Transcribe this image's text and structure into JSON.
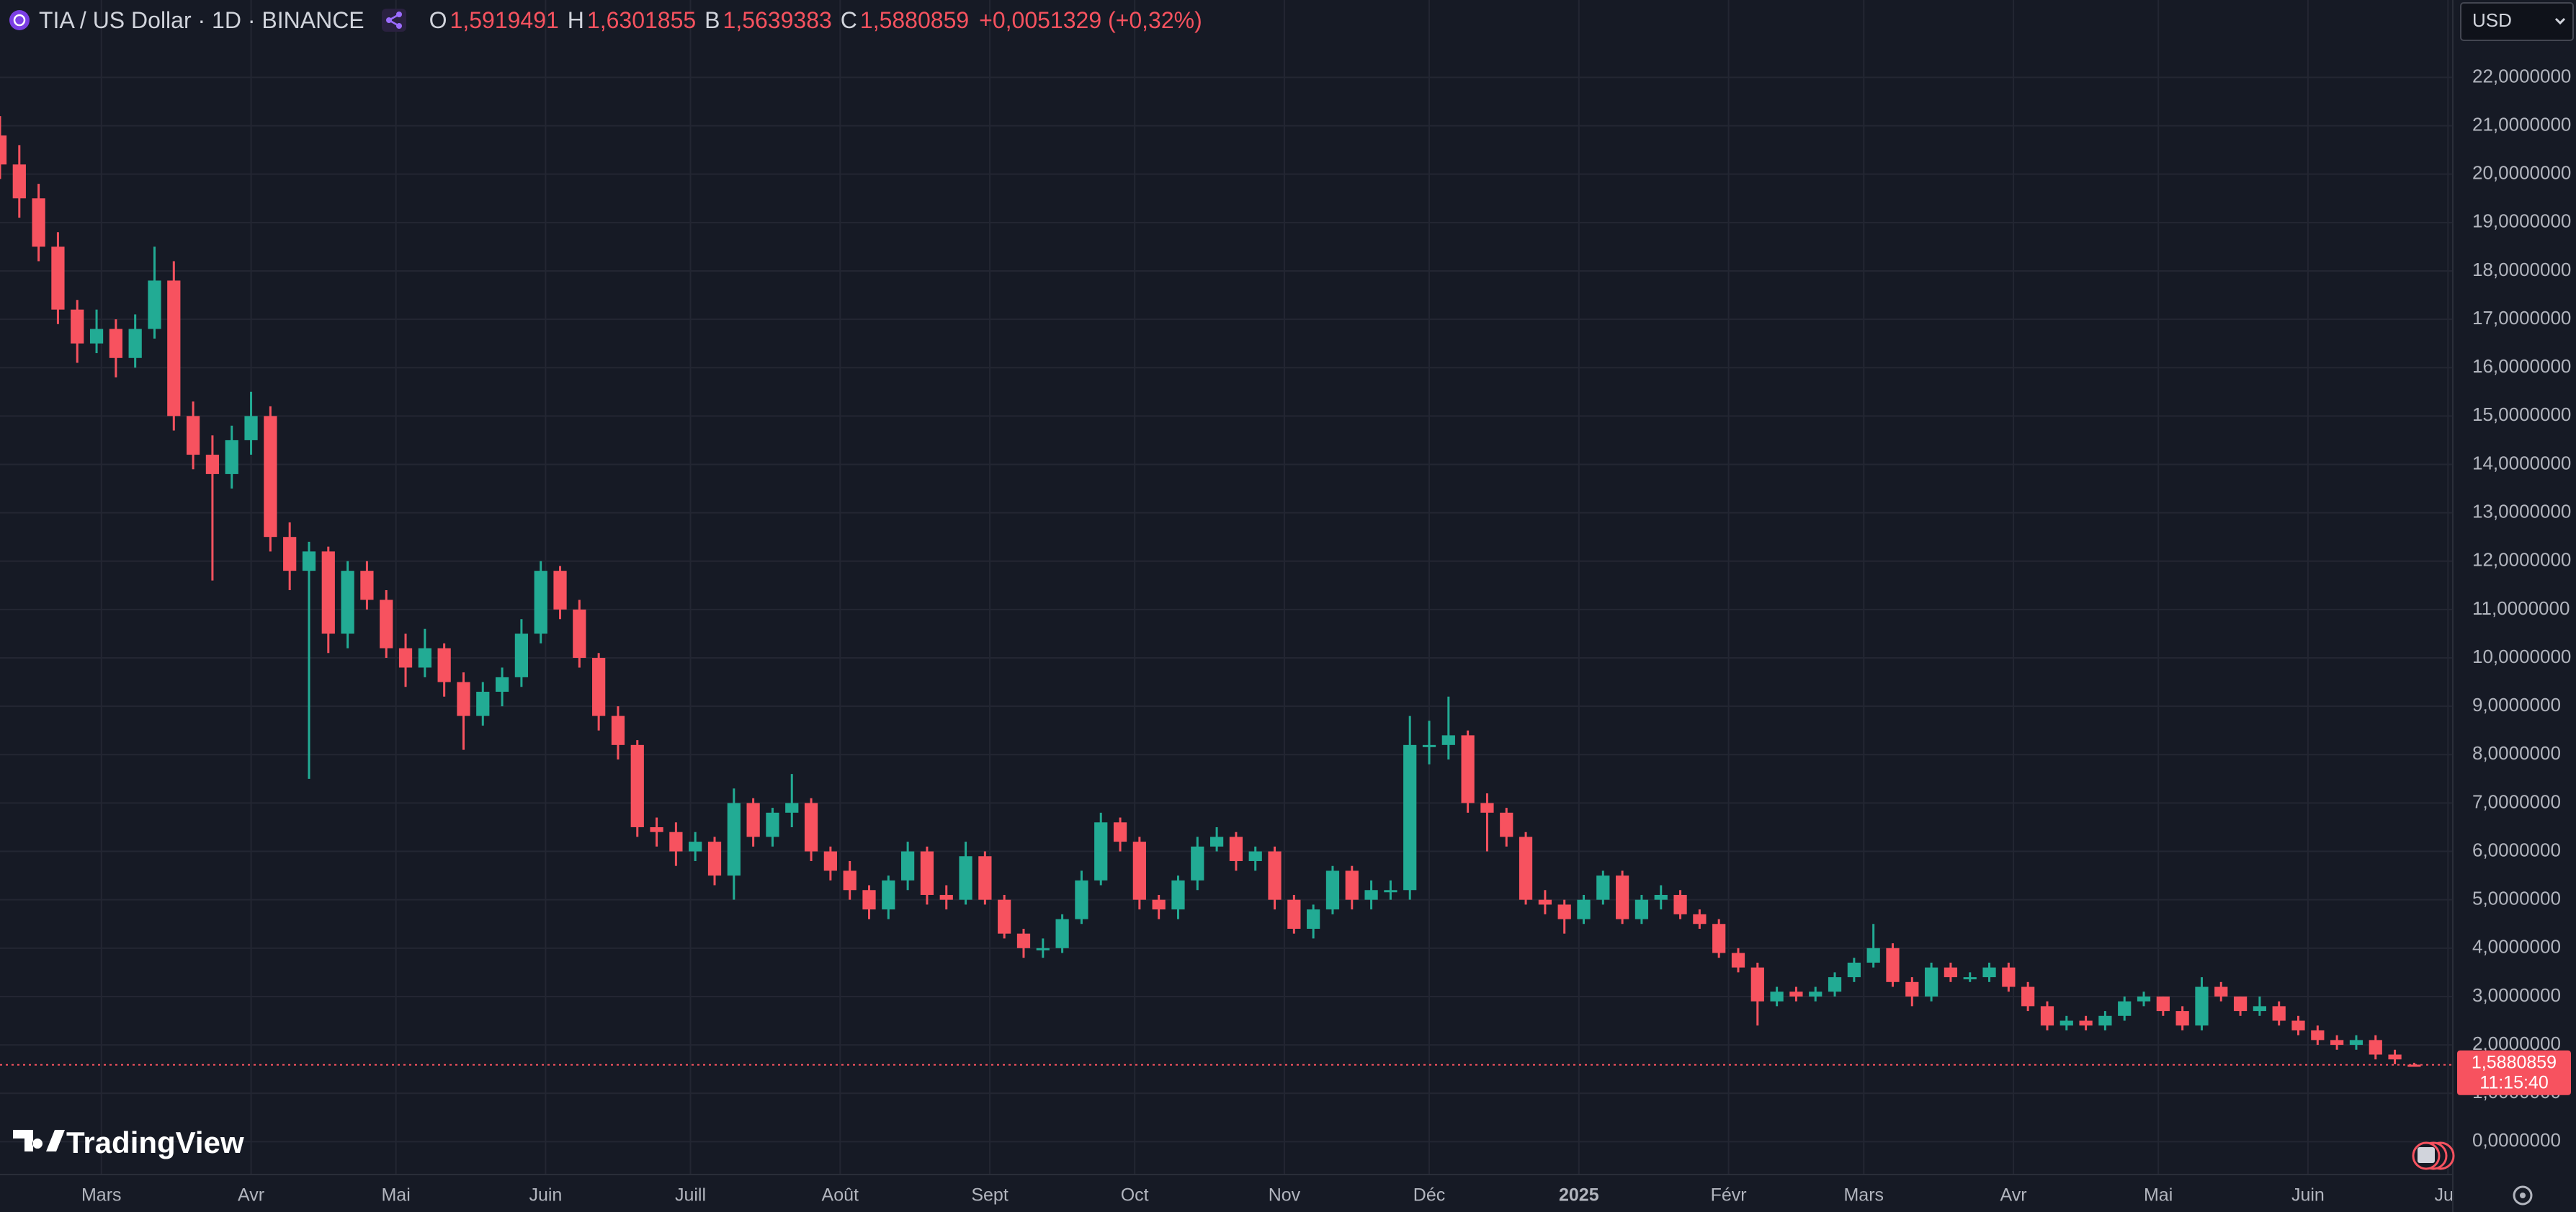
{
  "header": {
    "symbol": "TIA / US Dollar · 1D · BINANCE",
    "ohlc": [
      {
        "key": "O",
        "value": "1,5919491"
      },
      {
        "key": "H",
        "value": "1,6301855"
      },
      {
        "key": "B",
        "value": "1,5639383"
      },
      {
        "key": "C",
        "value": "1,5880859"
      }
    ],
    "change": "+0,0051329 (+0,32%)"
  },
  "currency": "USD",
  "brand": "TradingView",
  "chart_data": {
    "type": "candlestick",
    "up_color": "#22ab94",
    "down_color": "#f7525f",
    "grid": true,
    "open": [
      20.8,
      20.2,
      19.5,
      18.5,
      17.2,
      16.5,
      16.8,
      16.2,
      16.8,
      17.8,
      15.0,
      14.2,
      13.8,
      14.5,
      15.0,
      12.5,
      11.8,
      12.2,
      10.5,
      11.8,
      11.2,
      10.2,
      9.8,
      10.2,
      9.5,
      8.8,
      9.3,
      9.6,
      10.5,
      11.8,
      11.0,
      10.0,
      8.8,
      8.2,
      6.5,
      6.4,
      6.0,
      6.2,
      5.5,
      7.0,
      6.3,
      6.8,
      7.0,
      6.0,
      5.6,
      5.2,
      4.8,
      5.4,
      6.0,
      5.1,
      5.0,
      5.9,
      5.0,
      4.3,
      4.0,
      4.0,
      4.6,
      5.4,
      6.6,
      6.2,
      5.0,
      4.8,
      5.4,
      6.1,
      6.3,
      5.8,
      6.0,
      5.0,
      4.4,
      4.8,
      5.6,
      5.0,
      5.2,
      5.2,
      8.2,
      8.2,
      8.4,
      7.0,
      6.8,
      6.3,
      5.0,
      4.9,
      4.6,
      5.0,
      5.5,
      4.6,
      5.0,
      5.1,
      4.7,
      4.5,
      3.9,
      3.6,
      2.9,
      3.1,
      3.0,
      3.1,
      3.4,
      3.7,
      4.0,
      3.3,
      3.0,
      3.6,
      3.4,
      3.4,
      3.6,
      3.2,
      2.8,
      2.4,
      2.5,
      2.4,
      2.6,
      2.9,
      3.0,
      2.7,
      2.4,
      3.2,
      3.0,
      2.7,
      2.8,
      2.5,
      2.3,
      2.1,
      2.0,
      2.1,
      1.8,
      1.5919491
    ],
    "high": [
      21.2,
      20.6,
      19.8,
      18.8,
      17.4,
      17.2,
      17.0,
      17.1,
      18.5,
      18.2,
      15.3,
      14.6,
      14.8,
      15.5,
      15.2,
      12.8,
      12.4,
      12.3,
      12.0,
      12.0,
      11.4,
      10.5,
      10.6,
      10.3,
      9.7,
      9.5,
      9.8,
      10.8,
      12.0,
      11.9,
      11.2,
      10.1,
      9.0,
      8.3,
      6.7,
      6.6,
      6.4,
      6.3,
      7.3,
      7.1,
      6.9,
      7.6,
      7.1,
      6.1,
      5.8,
      5.3,
      5.5,
      6.2,
      6.1,
      5.3,
      6.2,
      6.0,
      5.1,
      4.4,
      4.2,
      4.7,
      5.6,
      6.8,
      6.7,
      6.3,
      5.1,
      5.5,
      6.3,
      6.5,
      6.4,
      6.1,
      6.1,
      5.1,
      4.9,
      5.7,
      5.7,
      5.4,
      5.4,
      8.8,
      8.7,
      9.2,
      8.5,
      7.2,
      6.9,
      6.4,
      5.2,
      5.0,
      5.1,
      5.6,
      5.6,
      5.1,
      5.3,
      5.2,
      4.8,
      4.6,
      4.0,
      3.7,
      3.2,
      3.2,
      3.2,
      3.5,
      3.8,
      4.5,
      4.1,
      3.4,
      3.7,
      3.7,
      3.5,
      3.7,
      3.7,
      3.3,
      2.9,
      2.6,
      2.6,
      2.7,
      3.0,
      3.1,
      3.0,
      2.8,
      3.4,
      3.3,
      3.0,
      3.0,
      2.9,
      2.6,
      2.4,
      2.2,
      2.2,
      2.2,
      1.9,
      1.6301855
    ],
    "low": [
      19.9,
      19.1,
      18.2,
      16.9,
      16.1,
      16.3,
      15.8,
      16.0,
      16.6,
      14.7,
      13.9,
      11.6,
      13.5,
      14.2,
      12.2,
      11.4,
      7.5,
      10.1,
      10.2,
      11.0,
      10.0,
      9.4,
      9.6,
      9.2,
      8.1,
      8.6,
      9.0,
      9.4,
      10.3,
      10.8,
      9.8,
      8.5,
      7.9,
      6.3,
      6.1,
      5.7,
      5.8,
      5.3,
      5.0,
      6.1,
      6.1,
      6.5,
      5.8,
      5.4,
      5.0,
      4.6,
      4.6,
      5.2,
      4.9,
      4.8,
      4.9,
      4.9,
      4.2,
      3.8,
      3.8,
      3.9,
      4.5,
      5.3,
      6.0,
      4.8,
      4.6,
      4.6,
      5.2,
      6.0,
      5.6,
      5.6,
      4.8,
      4.3,
      4.2,
      4.7,
      4.8,
      4.8,
      5.0,
      5.0,
      7.8,
      7.9,
      6.8,
      6.0,
      6.1,
      4.9,
      4.7,
      4.3,
      4.5,
      4.9,
      4.5,
      4.5,
      4.8,
      4.6,
      4.4,
      3.8,
      3.5,
      2.4,
      2.8,
      2.9,
      2.9,
      3.0,
      3.3,
      3.6,
      3.2,
      2.8,
      2.9,
      3.3,
      3.3,
      3.3,
      3.1,
      2.7,
      2.3,
      2.3,
      2.3,
      2.3,
      2.5,
      2.8,
      2.6,
      2.3,
      2.3,
      2.9,
      2.6,
      2.6,
      2.4,
      2.2,
      2.0,
      1.9,
      1.9,
      1.7,
      1.6,
      1.5639383
    ],
    "close": [
      20.2,
      19.5,
      18.5,
      17.2,
      16.5,
      16.8,
      16.2,
      16.8,
      17.8,
      15.0,
      14.2,
      13.8,
      14.5,
      15.0,
      12.5,
      11.8,
      12.2,
      10.5,
      11.8,
      11.2,
      10.2,
      9.8,
      10.2,
      9.5,
      8.8,
      9.3,
      9.6,
      10.5,
      11.8,
      11.0,
      10.0,
      8.8,
      8.2,
      6.5,
      6.4,
      6.0,
      6.2,
      5.5,
      7.0,
      6.3,
      6.8,
      7.0,
      6.0,
      5.6,
      5.2,
      4.8,
      5.4,
      6.0,
      5.1,
      5.0,
      5.9,
      5.0,
      4.3,
      4.0,
      4.0,
      4.6,
      5.4,
      6.6,
      6.2,
      5.0,
      4.8,
      5.4,
      6.1,
      6.3,
      5.8,
      6.0,
      5.0,
      4.4,
      4.8,
      5.6,
      5.0,
      5.2,
      5.2,
      8.2,
      8.2,
      8.4,
      7.0,
      6.8,
      6.3,
      5.0,
      4.9,
      4.6,
      5.0,
      5.5,
      4.6,
      5.0,
      5.1,
      4.7,
      4.5,
      3.9,
      3.6,
      2.9,
      3.1,
      3.0,
      3.1,
      3.4,
      3.7,
      4.0,
      3.3,
      3.0,
      3.6,
      3.4,
      3.4,
      3.6,
      3.2,
      2.8,
      2.4,
      2.5,
      2.4,
      2.6,
      2.9,
      3.0,
      2.7,
      2.4,
      3.2,
      3.0,
      2.7,
      2.8,
      2.5,
      2.3,
      2.1,
      2.0,
      2.1,
      1.8,
      1.7,
      1.5880859
    ],
    "xlim": [
      0,
      127
    ],
    "xticks": [
      {
        "value": 5.25,
        "label": "Mars"
      },
      {
        "value": 13,
        "label": "Avr"
      },
      {
        "value": 20.5,
        "label": "Mai"
      },
      {
        "value": 28.25,
        "label": "Juin"
      },
      {
        "value": 35.75,
        "label": "Juill"
      },
      {
        "value": 43.5,
        "label": "Août"
      },
      {
        "value": 51.25,
        "label": "Sept"
      },
      {
        "value": 58.75,
        "label": "Oct"
      },
      {
        "value": 66.5,
        "label": "Nov"
      },
      {
        "value": 74,
        "label": "Déc"
      },
      {
        "value": 81.75,
        "label": "2025",
        "bold": true
      },
      {
        "value": 89.5,
        "label": "Févr"
      },
      {
        "value": 96.5,
        "label": "Mars"
      },
      {
        "value": 104.25,
        "label": "Avr"
      },
      {
        "value": 111.75,
        "label": "Mai"
      },
      {
        "value": 119.5,
        "label": "Juin"
      },
      {
        "value": 126.75,
        "label": "Juil"
      }
    ],
    "ylim": [
      -0.68,
      23.6
    ],
    "yticks": [
      {
        "value": 0,
        "label": "0,0000000"
      },
      {
        "value": 1,
        "label": "1,0000000"
      },
      {
        "value": 2,
        "label": "2,0000000"
      },
      {
        "value": 3,
        "label": "3,0000000"
      },
      {
        "value": 4,
        "label": "4,0000000"
      },
      {
        "value": 5,
        "label": "5,0000000"
      },
      {
        "value": 6,
        "label": "6,0000000"
      },
      {
        "value": 7,
        "label": "7,0000000"
      },
      {
        "value": 8,
        "label": "8,0000000"
      },
      {
        "value": 9,
        "label": "9,0000000"
      },
      {
        "value": 10,
        "label": "10,0000000"
      },
      {
        "value": 11,
        "label": "11,0000000"
      },
      {
        "value": 12,
        "label": "12,0000000"
      },
      {
        "value": 13,
        "label": "13,0000000"
      },
      {
        "value": 14,
        "label": "14,0000000"
      },
      {
        "value": 15,
        "label": "15,0000000"
      },
      {
        "value": 16,
        "label": "16,0000000"
      },
      {
        "value": 17,
        "label": "17,0000000"
      },
      {
        "value": 18,
        "label": "18,0000000"
      },
      {
        "value": 19,
        "label": "19,0000000"
      },
      {
        "value": 20,
        "label": "20,0000000"
      },
      {
        "value": 21,
        "label": "21,0000000"
      },
      {
        "value": 22,
        "label": "22,0000000"
      }
    ],
    "last_price_label": "1,5880859",
    "countdown": "11:15:40"
  }
}
